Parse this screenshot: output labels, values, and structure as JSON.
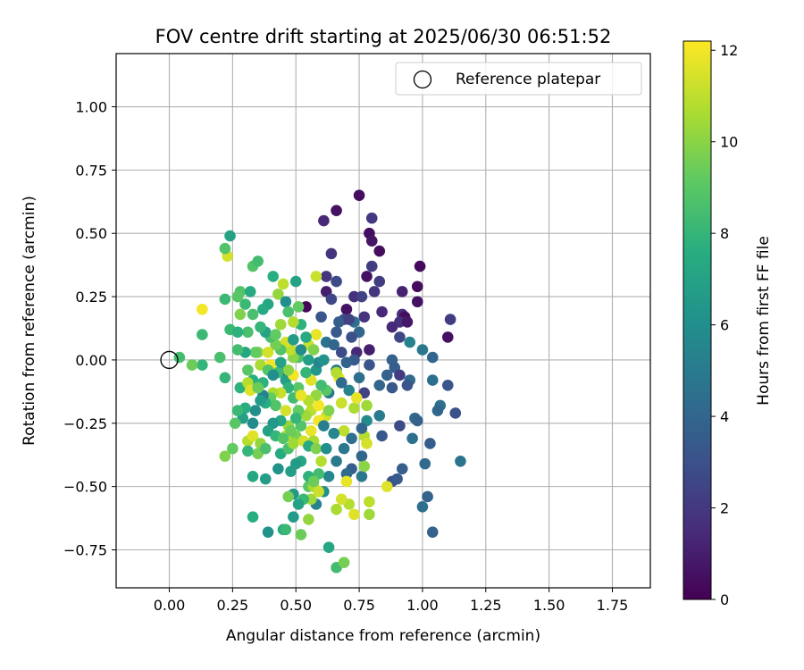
{
  "chart_data": {
    "type": "scatter",
    "title": "FOV centre drift starting at 2025/06/30 06:51:52",
    "xlabel": "Angular distance from reference (arcmin)",
    "ylabel": "Rotation from reference (arcmin)",
    "xlim": [
      -0.21,
      1.9
    ],
    "ylim": [
      -0.9,
      1.21
    ],
    "xticks": [
      "0.00",
      "0.25",
      "0.50",
      "0.75",
      "1.00",
      "1.25",
      "1.50",
      "1.75"
    ],
    "yticks": [
      "−0.75",
      "−0.50",
      "−0.25",
      "0.00",
      "0.25",
      "0.50",
      "0.75",
      "1.00"
    ],
    "grid": true,
    "legend": {
      "position": "top-right",
      "entries": [
        "Reference platepar"
      ]
    },
    "reference_point": {
      "x": 0.0,
      "y": 0.0,
      "label": "Reference platepar"
    },
    "colorbar": {
      "label": "Hours from first FF file",
      "min": 0,
      "max": 12.2,
      "ticks": [
        "0",
        "2",
        "4",
        "6",
        "8",
        "10",
        "12"
      ],
      "colormap": "viridis"
    },
    "points": [
      [
        0.75,
        0.65,
        0.4
      ],
      [
        0.66,
        0.59,
        0.6
      ],
      [
        0.61,
        0.55,
        1.4
      ],
      [
        0.8,
        0.56,
        2.0
      ],
      [
        0.79,
        0.5,
        0.5
      ],
      [
        0.8,
        0.47,
        0.7
      ],
      [
        0.83,
        0.43,
        0.4
      ],
      [
        0.64,
        0.42,
        1.8
      ],
      [
        0.8,
        0.37,
        2.2
      ],
      [
        0.99,
        0.37,
        0.3
      ],
      [
        0.78,
        0.33,
        0.6
      ],
      [
        0.62,
        0.33,
        1.8
      ],
      [
        0.62,
        0.27,
        1.0
      ],
      [
        0.66,
        0.31,
        2.8
      ],
      [
        0.92,
        0.27,
        1.1
      ],
      [
        0.98,
        0.29,
        0.4
      ],
      [
        0.83,
        0.31,
        2.2
      ],
      [
        0.81,
        0.27,
        1.8
      ],
      [
        0.73,
        0.25,
        1.6
      ],
      [
        0.76,
        0.25,
        2.4
      ],
      [
        0.64,
        0.24,
        2.6
      ],
      [
        0.98,
        0.23,
        0.6
      ],
      [
        0.54,
        0.21,
        0.2
      ],
      [
        0.7,
        0.2,
        0.6
      ],
      [
        0.84,
        0.19,
        1.4
      ],
      [
        0.92,
        0.18,
        1.6
      ],
      [
        0.93,
        0.17,
        0.4
      ],
      [
        1.11,
        0.16,
        2.2
      ],
      [
        0.77,
        0.17,
        1.8
      ],
      [
        0.69,
        0.16,
        2.8
      ],
      [
        0.91,
        0.15,
        1.6
      ],
      [
        0.94,
        0.15,
        0.8
      ],
      [
        0.88,
        0.13,
        1.4
      ],
      [
        0.73,
        0.15,
        4.5
      ],
      [
        0.6,
        0.17,
        3.2
      ],
      [
        0.75,
        0.11,
        4.0
      ],
      [
        0.66,
        0.11,
        3.4
      ],
      [
        0.91,
        0.09,
        2.6
      ],
      [
        1.1,
        0.09,
        0.6
      ],
      [
        0.95,
        0.07,
        5.4
      ],
      [
        0.79,
        0.04,
        1.0
      ],
      [
        0.74,
        0.03,
        1.4
      ],
      [
        1.0,
        0.04,
        4.8
      ],
      [
        0.68,
        0.03,
        2.8
      ],
      [
        0.73,
        0.0,
        3.4
      ],
      [
        0.88,
        0.0,
        3.8
      ],
      [
        1.04,
        0.01,
        4.0
      ],
      [
        0.79,
        -0.02,
        3.2
      ],
      [
        0.89,
        -0.03,
        3.6
      ],
      [
        0.91,
        -0.06,
        2.2
      ],
      [
        0.66,
        -0.04,
        4.8
      ],
      [
        0.75,
        -0.07,
        4.5
      ],
      [
        0.86,
        -0.06,
        3.8
      ],
      [
        0.95,
        -0.08,
        4.2
      ],
      [
        1.04,
        -0.08,
        4.5
      ],
      [
        1.1,
        -0.1,
        3.2
      ],
      [
        0.46,
        -0.05,
        1.0
      ],
      [
        0.83,
        -0.1,
        4.0
      ],
      [
        0.88,
        -0.11,
        3.4
      ],
      [
        0.94,
        -0.1,
        3.2
      ],
      [
        0.77,
        -0.13,
        2.4
      ],
      [
        0.71,
        -0.12,
        5.4
      ],
      [
        0.63,
        -0.13,
        4.8
      ],
      [
        1.07,
        -0.18,
        4.5
      ],
      [
        1.06,
        -0.2,
        4.0
      ],
      [
        1.13,
        -0.21,
        3.0
      ],
      [
        0.97,
        -0.23,
        4.2
      ],
      [
        0.98,
        -0.24,
        3.8
      ],
      [
        0.91,
        -0.26,
        2.8
      ],
      [
        0.83,
        -0.22,
        5.0
      ],
      [
        0.78,
        -0.24,
        5.8
      ],
      [
        0.84,
        -0.3,
        3.4
      ],
      [
        0.96,
        -0.31,
        4.5
      ],
      [
        1.03,
        -0.33,
        3.6
      ],
      [
        0.76,
        -0.38,
        4.0
      ],
      [
        0.72,
        -0.43,
        3.6
      ],
      [
        0.7,
        -0.45,
        4.2
      ],
      [
        1.15,
        -0.4,
        4.6
      ],
      [
        1.01,
        -0.41,
        4.2
      ],
      [
        0.92,
        -0.43,
        3.6
      ],
      [
        0.88,
        -0.48,
        3.0
      ],
      [
        0.9,
        -0.47,
        3.4
      ],
      [
        1.02,
        -0.54,
        3.8
      ],
      [
        1.0,
        -0.58,
        4.4
      ],
      [
        1.04,
        -0.68,
        3.8
      ],
      [
        0.76,
        -0.46,
        4.8
      ],
      [
        0.63,
        -0.46,
        5.6
      ],
      [
        0.61,
        -0.52,
        6.0
      ],
      [
        0.58,
        -0.57,
        5.4
      ],
      [
        0.49,
        -0.53,
        6.4
      ],
      [
        0.48,
        -0.44,
        6.8
      ],
      [
        0.49,
        -0.62,
        6.6
      ],
      [
        0.39,
        -0.68,
        6.2
      ],
      [
        0.63,
        -0.74,
        7.2
      ],
      [
        0.45,
        -0.67,
        7.4
      ],
      [
        0.33,
        -0.62,
        7.6
      ],
      [
        0.66,
        -0.82,
        8.4
      ],
      [
        0.69,
        -0.8,
        9.6
      ],
      [
        0.52,
        -0.69,
        9.4
      ],
      [
        0.55,
        -0.63,
        10.2
      ],
      [
        0.46,
        -0.67,
        8.2
      ],
      [
        0.79,
        -0.61,
        10.4
      ],
      [
        0.73,
        -0.61,
        11.6
      ],
      [
        0.71,
        -0.57,
        10.8
      ],
      [
        0.79,
        -0.56,
        11.0
      ],
      [
        0.68,
        -0.55,
        11.4
      ],
      [
        0.66,
        -0.59,
        10.6
      ],
      [
        0.56,
        -0.55,
        10.4
      ],
      [
        0.47,
        -0.54,
        9.6
      ],
      [
        0.55,
        -0.5,
        9.0
      ],
      [
        0.57,
        -0.5,
        10.6
      ],
      [
        0.7,
        -0.48,
        11.8
      ],
      [
        0.86,
        -0.5,
        11.6
      ],
      [
        0.77,
        -0.42,
        10.0
      ],
      [
        0.77,
        -0.3,
        10.8
      ],
      [
        0.78,
        -0.33,
        11.4
      ],
      [
        0.69,
        -0.28,
        11.0
      ],
      [
        0.62,
        -0.22,
        11.4
      ],
      [
        0.59,
        -0.24,
        12.0
      ],
      [
        0.63,
        -0.2,
        9.8
      ],
      [
        0.68,
        -0.17,
        11.2
      ],
      [
        0.73,
        -0.19,
        10.6
      ],
      [
        0.78,
        -0.18,
        10.4
      ],
      [
        0.74,
        -0.15,
        11.8
      ],
      [
        0.67,
        -0.07,
        11.8
      ],
      [
        0.66,
        -0.05,
        10.8
      ],
      [
        0.56,
        -0.08,
        11.6
      ],
      [
        0.54,
        -0.05,
        8.0
      ],
      [
        0.55,
        0.06,
        11.2
      ],
      [
        0.58,
        0.1,
        11.8
      ],
      [
        0.57,
        0.04,
        9.8
      ],
      [
        0.54,
        0.09,
        7.4
      ],
      [
        0.51,
        0.01,
        8.6
      ],
      [
        0.49,
        0.01,
        10.0
      ],
      [
        0.48,
        0.04,
        11.0
      ],
      [
        0.46,
        0.07,
        11.4
      ],
      [
        0.44,
        0.04,
        8.8
      ],
      [
        0.42,
        0.06,
        9.6
      ],
      [
        0.4,
        0.09,
        8.6
      ],
      [
        0.38,
        0.11,
        7.0
      ],
      [
        0.36,
        0.13,
        8.0
      ],
      [
        0.35,
        0.03,
        10.0
      ],
      [
        0.39,
        0.03,
        11.4
      ],
      [
        0.36,
        -0.02,
        10.6
      ],
      [
        0.4,
        -0.02,
        12.0
      ],
      [
        0.34,
        0.03,
        9.2
      ],
      [
        0.3,
        0.03,
        7.2
      ],
      [
        0.27,
        0.04,
        8.4
      ],
      [
        0.31,
        -0.04,
        9.0
      ],
      [
        0.33,
        -0.08,
        7.6
      ],
      [
        0.28,
        -0.11,
        7.8
      ],
      [
        0.31,
        -0.09,
        10.8
      ],
      [
        0.32,
        -0.12,
        11.6
      ],
      [
        0.22,
        -0.07,
        8.0
      ],
      [
        0.2,
        0.01,
        8.6
      ],
      [
        0.13,
        -0.02,
        8.0
      ],
      [
        0.09,
        -0.02,
        9.4
      ],
      [
        0.04,
        0.01,
        8.4
      ],
      [
        0.13,
        0.1,
        8.2
      ],
      [
        0.13,
        0.2,
        12.0
      ],
      [
        0.23,
        0.41,
        11.4
      ],
      [
        0.22,
        0.44,
        8.8
      ],
      [
        0.24,
        0.49,
        7.0
      ],
      [
        0.33,
        0.37,
        8.8
      ],
      [
        0.35,
        0.39,
        8.4
      ],
      [
        0.28,
        0.27,
        8.8
      ],
      [
        0.3,
        0.22,
        8.2
      ],
      [
        0.32,
        0.27,
        7.4
      ],
      [
        0.27,
        0.25,
        9.0
      ],
      [
        0.33,
        0.18,
        8.6
      ],
      [
        0.28,
        0.18,
        9.8
      ],
      [
        0.31,
        0.11,
        8.6
      ],
      [
        0.24,
        0.12,
        8.2
      ],
      [
        0.27,
        0.11,
        7.8
      ],
      [
        0.22,
        0.24,
        8.2
      ],
      [
        0.39,
        0.22,
        7.2
      ],
      [
        0.37,
        0.2,
        7.4
      ],
      [
        0.43,
        0.26,
        10.2
      ],
      [
        0.41,
        0.33,
        7.6
      ],
      [
        0.45,
        0.3,
        11.0
      ],
      [
        0.46,
        0.23,
        6.0
      ],
      [
        0.5,
        0.31,
        7.0
      ],
      [
        0.51,
        0.21,
        9.2
      ],
      [
        0.58,
        0.33,
        11.2
      ],
      [
        0.52,
        0.14,
        7.8
      ],
      [
        0.47,
        0.19,
        8.6
      ],
      [
        0.44,
        0.14,
        10.4
      ],
      [
        0.42,
        0.1,
        9.2
      ],
      [
        0.49,
        0.15,
        10.8
      ],
      [
        0.51,
        -0.11,
        9.0
      ],
      [
        0.49,
        -0.15,
        8.4
      ],
      [
        0.46,
        -0.08,
        6.8
      ],
      [
        0.47,
        -0.11,
        7.8
      ],
      [
        0.44,
        -0.13,
        11.2
      ],
      [
        0.41,
        -0.13,
        10.6
      ],
      [
        0.4,
        -0.15,
        9.2
      ],
      [
        0.42,
        -0.18,
        8.8
      ],
      [
        0.38,
        -0.17,
        7.6
      ],
      [
        0.37,
        -0.14,
        5.4
      ],
      [
        0.36,
        -0.16,
        6.6
      ],
      [
        0.34,
        -0.2,
        6.0
      ],
      [
        0.33,
        -0.25,
        5.8
      ],
      [
        0.3,
        -0.19,
        7.6
      ],
      [
        0.29,
        -0.23,
        6.8
      ],
      [
        0.27,
        -0.2,
        8.2
      ],
      [
        0.26,
        -0.25,
        9.0
      ],
      [
        0.25,
        -0.35,
        9.2
      ],
      [
        0.22,
        -0.38,
        9.8
      ],
      [
        0.31,
        -0.32,
        10.8
      ],
      [
        0.33,
        -0.3,
        11.6
      ],
      [
        0.36,
        -0.33,
        10.2
      ],
      [
        0.35,
        -0.37,
        9.6
      ],
      [
        0.38,
        -0.35,
        8.6
      ],
      [
        0.31,
        -0.36,
        8.0
      ],
      [
        0.33,
        -0.46,
        7.2
      ],
      [
        0.38,
        -0.47,
        6.8
      ],
      [
        0.43,
        -0.43,
        6.2
      ],
      [
        0.44,
        -0.37,
        7.4
      ],
      [
        0.47,
        -0.35,
        8.6
      ],
      [
        0.5,
        -0.3,
        9.6
      ],
      [
        0.52,
        -0.26,
        8.8
      ],
      [
        0.47,
        -0.26,
        10.2
      ],
      [
        0.46,
        -0.3,
        11.0
      ],
      [
        0.49,
        -0.33,
        10.4
      ],
      [
        0.53,
        -0.32,
        11.4
      ],
      [
        0.56,
        -0.28,
        11.8
      ],
      [
        0.57,
        -0.32,
        10.6
      ],
      [
        0.55,
        -0.34,
        7.4
      ],
      [
        0.58,
        -0.35,
        9.8
      ],
      [
        0.6,
        -0.4,
        10.8
      ],
      [
        0.59,
        -0.45,
        8.4
      ],
      [
        0.52,
        -0.4,
        7.2
      ],
      [
        0.5,
        -0.41,
        6.6
      ],
      [
        0.55,
        -0.46,
        7.8
      ],
      [
        0.57,
        -0.48,
        9.4
      ],
      [
        0.59,
        -0.52,
        11.2
      ],
      [
        0.53,
        -0.55,
        8.2
      ],
      [
        0.51,
        -0.57,
        7.0
      ],
      [
        0.56,
        -0.2,
        11.0
      ],
      [
        0.59,
        -0.18,
        12.0
      ],
      [
        0.54,
        -0.22,
        10.4
      ],
      [
        0.51,
        -0.2,
        9.2
      ],
      [
        0.5,
        -0.23,
        8.0
      ],
      [
        0.46,
        -0.2,
        11.4
      ],
      [
        0.44,
        -0.24,
        7.2
      ],
      [
        0.41,
        -0.25,
        6.4
      ],
      [
        0.39,
        -0.28,
        7.0
      ],
      [
        0.42,
        -0.3,
        8.0
      ],
      [
        0.45,
        -0.31,
        8.8
      ],
      [
        0.48,
        -0.28,
        9.4
      ],
      [
        0.62,
        -0.12,
        9.0
      ],
      [
        0.6,
        -0.1,
        8.4
      ],
      [
        0.58,
        -0.14,
        10.2
      ],
      [
        0.55,
        -0.16,
        10.8
      ],
      [
        0.52,
        -0.14,
        11.8
      ],
      [
        0.49,
        -0.06,
        12.0
      ],
      [
        0.47,
        -0.04,
        10.0
      ],
      [
        0.43,
        -0.05,
        8.2
      ],
      [
        0.39,
        -0.04,
        8.8
      ],
      [
        0.37,
        -0.09,
        7.8
      ],
      [
        0.35,
        -0.11,
        9.4
      ],
      [
        0.58,
        -0.04,
        6.4
      ],
      [
        0.59,
        -0.01,
        5.6
      ],
      [
        0.61,
        0.0,
        6.2
      ],
      [
        0.55,
        0.0,
        6.8
      ],
      [
        0.52,
        0.04,
        5.8
      ],
      [
        0.49,
        0.08,
        6.6
      ],
      [
        0.44,
        -0.01,
        7.0
      ],
      [
        0.41,
        -0.06,
        6.0
      ],
      [
        0.62,
        0.07,
        4.6
      ],
      [
        0.65,
        0.06,
        4.0
      ],
      [
        0.67,
        0.15,
        3.6
      ],
      [
        0.71,
        0.16,
        2.4
      ],
      [
        0.72,
        0.09,
        3.0
      ],
      [
        0.7,
        -0.01,
        3.8
      ],
      [
        0.68,
        -0.09,
        4.2
      ],
      [
        0.61,
        -0.26,
        5.2
      ],
      [
        0.65,
        -0.29,
        5.6
      ],
      [
        0.62,
        -0.35,
        6.0
      ],
      [
        0.66,
        -0.4,
        5.0
      ],
      [
        0.69,
        -0.35,
        4.8
      ],
      [
        0.72,
        -0.31,
        4.4
      ],
      [
        0.76,
        -0.27,
        4.0
      ]
    ]
  }
}
